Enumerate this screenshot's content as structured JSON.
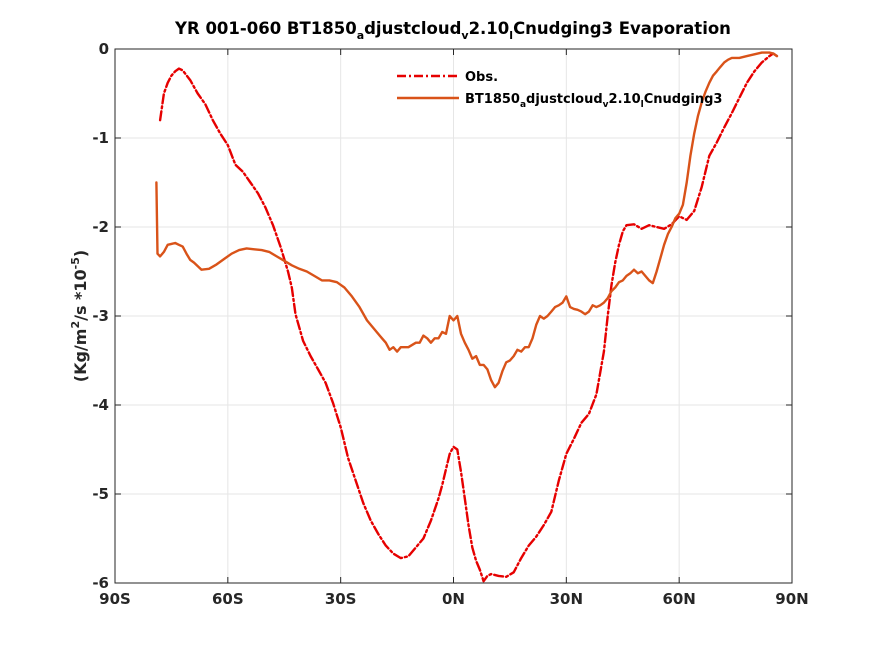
{
  "chart_data": {
    "type": "line",
    "title": {
      "base": "YR 001-060 BT1850",
      "sub1": "a",
      "mid1": "djustcloud",
      "sub2": "v",
      "mid2": "2.10",
      "sub3": "l",
      "end": "Cnudging3 Evaporation"
    },
    "ylabel": {
      "pre": "(Kg/m",
      "sup1": "2",
      "mid": "/s *10",
      "sup2": "-5",
      "post": ")"
    },
    "xlim": [
      -90,
      90
    ],
    "ylim": [
      -6,
      0
    ],
    "x_ticks": [
      {
        "value": -90,
        "label": "90S"
      },
      {
        "value": -60,
        "label": "60S"
      },
      {
        "value": -30,
        "label": "30S"
      },
      {
        "value": 0,
        "label": "0N"
      },
      {
        "value": 30,
        "label": "30N"
      },
      {
        "value": 60,
        "label": "60N"
      },
      {
        "value": 90,
        "label": "90N"
      }
    ],
    "y_ticks": [
      {
        "value": 0,
        "label": "0"
      },
      {
        "value": -1,
        "label": "-1"
      },
      {
        "value": -2,
        "label": "-2"
      },
      {
        "value": -3,
        "label": "-3"
      },
      {
        "value": -4,
        "label": "-4"
      },
      {
        "value": -5,
        "label": "-5"
      },
      {
        "value": -6,
        "label": "-6"
      }
    ],
    "grid": true,
    "legend_position": "top-right",
    "series": [
      {
        "name": "Obs.",
        "color": "#e60000",
        "style": "dash-dot",
        "points": [
          [
            -78,
            -0.8
          ],
          [
            -77,
            -0.5
          ],
          [
            -76,
            -0.38
          ],
          [
            -75,
            -0.3
          ],
          [
            -74,
            -0.25
          ],
          [
            -73,
            -0.22
          ],
          [
            -72,
            -0.24
          ],
          [
            -70,
            -0.35
          ],
          [
            -68,
            -0.5
          ],
          [
            -66,
            -0.62
          ],
          [
            -64,
            -0.8
          ],
          [
            -62,
            -0.95
          ],
          [
            -60,
            -1.08
          ],
          [
            -58,
            -1.3
          ],
          [
            -56,
            -1.38
          ],
          [
            -54,
            -1.5
          ],
          [
            -52,
            -1.62
          ],
          [
            -50,
            -1.78
          ],
          [
            -48,
            -1.98
          ],
          [
            -46,
            -2.22
          ],
          [
            -44,
            -2.5
          ],
          [
            -43,
            -2.68
          ],
          [
            -42,
            -2.98
          ],
          [
            -40,
            -3.28
          ],
          [
            -38,
            -3.45
          ],
          [
            -36,
            -3.6
          ],
          [
            -34,
            -3.75
          ],
          [
            -32,
            -3.98
          ],
          [
            -30,
            -4.25
          ],
          [
            -28,
            -4.6
          ],
          [
            -26,
            -4.85
          ],
          [
            -24,
            -5.1
          ],
          [
            -22,
            -5.3
          ],
          [
            -20,
            -5.45
          ],
          [
            -18,
            -5.58
          ],
          [
            -16,
            -5.67
          ],
          [
            -14,
            -5.72
          ],
          [
            -12,
            -5.7
          ],
          [
            -10,
            -5.6
          ],
          [
            -8,
            -5.5
          ],
          [
            -6,
            -5.3
          ],
          [
            -4,
            -5.05
          ],
          [
            -3,
            -4.9
          ],
          [
            -2,
            -4.72
          ],
          [
            -1,
            -4.55
          ],
          [
            0,
            -4.47
          ],
          [
            1,
            -4.5
          ],
          [
            2,
            -4.75
          ],
          [
            3,
            -5.05
          ],
          [
            4,
            -5.35
          ],
          [
            5,
            -5.6
          ],
          [
            6,
            -5.75
          ],
          [
            7,
            -5.85
          ],
          [
            8,
            -5.98
          ],
          [
            9,
            -5.92
          ],
          [
            10,
            -5.9
          ],
          [
            12,
            -5.92
          ],
          [
            14,
            -5.93
          ],
          [
            16,
            -5.88
          ],
          [
            18,
            -5.72
          ],
          [
            20,
            -5.58
          ],
          [
            22,
            -5.48
          ],
          [
            24,
            -5.35
          ],
          [
            26,
            -5.2
          ],
          [
            28,
            -4.85
          ],
          [
            30,
            -4.55
          ],
          [
            32,
            -4.38
          ],
          [
            34,
            -4.2
          ],
          [
            36,
            -4.1
          ],
          [
            38,
            -3.88
          ],
          [
            40,
            -3.4
          ],
          [
            41,
            -3.0
          ],
          [
            42,
            -2.65
          ],
          [
            43,
            -2.4
          ],
          [
            44,
            -2.2
          ],
          [
            45,
            -2.05
          ],
          [
            46,
            -1.98
          ],
          [
            48,
            -1.97
          ],
          [
            50,
            -2.02
          ],
          [
            52,
            -1.98
          ],
          [
            54,
            -2.0
          ],
          [
            56,
            -2.02
          ],
          [
            58,
            -1.97
          ],
          [
            60,
            -1.88
          ],
          [
            62,
            -1.92
          ],
          [
            64,
            -1.82
          ],
          [
            66,
            -1.55
          ],
          [
            68,
            -1.2
          ],
          [
            70,
            -1.05
          ],
          [
            72,
            -0.88
          ],
          [
            74,
            -0.72
          ],
          [
            76,
            -0.55
          ],
          [
            78,
            -0.38
          ],
          [
            80,
            -0.25
          ],
          [
            82,
            -0.15
          ],
          [
            84,
            -0.08
          ],
          [
            85,
            -0.05
          ],
          [
            86,
            -0.08
          ]
        ]
      },
      {
        "name": "BT1850adjustcloudv2.10lCnudging3",
        "label_parts": {
          "base": "BT1850",
          "sub1": "a",
          "mid1": "djustcloud",
          "sub2": "v",
          "mid2": "2.10",
          "sub3": "l",
          "end": "Cnudging3"
        },
        "color": "#d95319",
        "style": "solid",
        "points": [
          [
            -79,
            -1.5
          ],
          [
            -78.7,
            -2.3
          ],
          [
            -78,
            -2.33
          ],
          [
            -77,
            -2.28
          ],
          [
            -76,
            -2.2
          ],
          [
            -75,
            -2.19
          ],
          [
            -74,
            -2.18
          ],
          [
            -73,
            -2.2
          ],
          [
            -72,
            -2.22
          ],
          [
            -71,
            -2.3
          ],
          [
            -70,
            -2.37
          ],
          [
            -69,
            -2.4
          ],
          [
            -67,
            -2.48
          ],
          [
            -65,
            -2.47
          ],
          [
            -63,
            -2.42
          ],
          [
            -61,
            -2.36
          ],
          [
            -59,
            -2.3
          ],
          [
            -57,
            -2.26
          ],
          [
            -55,
            -2.24
          ],
          [
            -53,
            -2.25
          ],
          [
            -51,
            -2.26
          ],
          [
            -49,
            -2.28
          ],
          [
            -47,
            -2.33
          ],
          [
            -45,
            -2.38
          ],
          [
            -43,
            -2.43
          ],
          [
            -41,
            -2.47
          ],
          [
            -39,
            -2.5
          ],
          [
            -37,
            -2.55
          ],
          [
            -35,
            -2.6
          ],
          [
            -33,
            -2.6
          ],
          [
            -31,
            -2.62
          ],
          [
            -29,
            -2.68
          ],
          [
            -27,
            -2.78
          ],
          [
            -25,
            -2.9
          ],
          [
            -23,
            -3.05
          ],
          [
            -21,
            -3.15
          ],
          [
            -19,
            -3.25
          ],
          [
            -18,
            -3.3
          ],
          [
            -17,
            -3.38
          ],
          [
            -16,
            -3.35
          ],
          [
            -15,
            -3.4
          ],
          [
            -14,
            -3.35
          ],
          [
            -12,
            -3.35
          ],
          [
            -10,
            -3.3
          ],
          [
            -9,
            -3.3
          ],
          [
            -8,
            -3.22
          ],
          [
            -7,
            -3.25
          ],
          [
            -6,
            -3.3
          ],
          [
            -5,
            -3.25
          ],
          [
            -4,
            -3.25
          ],
          [
            -3,
            -3.18
          ],
          [
            -2,
            -3.2
          ],
          [
            -1,
            -3.0
          ],
          [
            0,
            -3.05
          ],
          [
            1,
            -3.0
          ],
          [
            2,
            -3.2
          ],
          [
            3,
            -3.3
          ],
          [
            4,
            -3.38
          ],
          [
            5,
            -3.48
          ],
          [
            6,
            -3.45
          ],
          [
            7,
            -3.55
          ],
          [
            8,
            -3.55
          ],
          [
            9,
            -3.6
          ],
          [
            10,
            -3.72
          ],
          [
            11,
            -3.8
          ],
          [
            12,
            -3.75
          ],
          [
            13,
            -3.62
          ],
          [
            14,
            -3.52
          ],
          [
            15,
            -3.5
          ],
          [
            16,
            -3.45
          ],
          [
            17,
            -3.38
          ],
          [
            18,
            -3.4
          ],
          [
            19,
            -3.35
          ],
          [
            20,
            -3.35
          ],
          [
            21,
            -3.25
          ],
          [
            22,
            -3.1
          ],
          [
            23,
            -3.0
          ],
          [
            24,
            -3.03
          ],
          [
            25,
            -3.0
          ],
          [
            26,
            -2.95
          ],
          [
            27,
            -2.9
          ],
          [
            28,
            -2.88
          ],
          [
            29,
            -2.85
          ],
          [
            30,
            -2.78
          ],
          [
            31,
            -2.9
          ],
          [
            32,
            -2.92
          ],
          [
            33,
            -2.93
          ],
          [
            34,
            -2.95
          ],
          [
            35,
            -2.98
          ],
          [
            36,
            -2.95
          ],
          [
            37,
            -2.88
          ],
          [
            38,
            -2.9
          ],
          [
            39,
            -2.88
          ],
          [
            40,
            -2.85
          ],
          [
            41,
            -2.8
          ],
          [
            42,
            -2.72
          ],
          [
            43,
            -2.68
          ],
          [
            44,
            -2.62
          ],
          [
            45,
            -2.6
          ],
          [
            46,
            -2.55
          ],
          [
            47,
            -2.52
          ],
          [
            48,
            -2.48
          ],
          [
            49,
            -2.52
          ],
          [
            50,
            -2.5
          ],
          [
            51,
            -2.55
          ],
          [
            52,
            -2.6
          ],
          [
            53,
            -2.63
          ],
          [
            54,
            -2.5
          ],
          [
            55,
            -2.35
          ],
          [
            56,
            -2.2
          ],
          [
            57,
            -2.08
          ],
          [
            58,
            -2.0
          ],
          [
            59,
            -1.9
          ],
          [
            60,
            -1.85
          ],
          [
            61,
            -1.75
          ],
          [
            62,
            -1.5
          ],
          [
            63,
            -1.2
          ],
          [
            64,
            -0.95
          ],
          [
            65,
            -0.75
          ],
          [
            66,
            -0.6
          ],
          [
            67,
            -0.48
          ],
          [
            68,
            -0.38
          ],
          [
            69,
            -0.3
          ],
          [
            70,
            -0.25
          ],
          [
            71,
            -0.2
          ],
          [
            72,
            -0.15
          ],
          [
            73,
            -0.12
          ],
          [
            74,
            -0.1
          ],
          [
            76,
            -0.1
          ],
          [
            78,
            -0.08
          ],
          [
            80,
            -0.06
          ],
          [
            82,
            -0.04
          ],
          [
            84,
            -0.04
          ],
          [
            85,
            -0.05
          ],
          [
            86,
            -0.08
          ]
        ]
      }
    ]
  }
}
